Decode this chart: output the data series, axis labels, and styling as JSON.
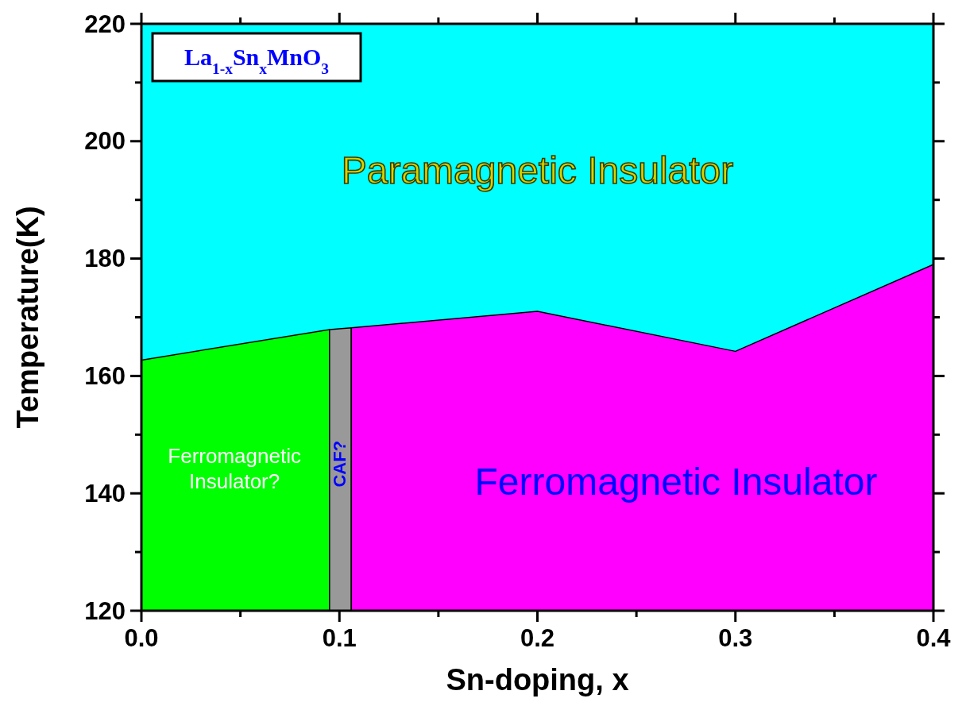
{
  "chart_data": {
    "type": "area",
    "title": "La$_{1-x}$Sn$_{x}$MnO$_{3}$",
    "xlabel": "Sn-doping, x",
    "ylabel": "Temperature(K)",
    "series": [
      {
        "color": "#00ff00",
        "x": [
          0,
          0.095
        ],
        "values": [
          162.7,
          167.9
        ]
      },
      {
        "color": "#999999",
        "x": [
          0.095,
          0.106
        ],
        "values": [
          167.9,
          168.2
        ]
      },
      {
        "color": "#ff00ff",
        "x": [
          0.106,
          0.2,
          0.3,
          0.4
        ],
        "values": [
          168.2,
          171,
          164.2,
          179
        ]
      }
    ],
    "annotations": [
      "Paramagnetic Insulator",
      "Ferromagnetic Insulator?",
      "CAF?",
      "Ferromagnetic Insulator"
    ],
    "xlim": [
      0,
      0.4
    ],
    "ylim": [
      120,
      220
    ],
    "xticks": [
      {
        "value": 0,
        "label": "0.0"
      },
      {
        "value": 0.05,
        "label": null
      },
      0.1,
      {
        "value": 0.15,
        "label": null
      },
      0.2,
      {
        "value": 0.25,
        "label": null
      },
      0.3,
      {
        "value": 0.35,
        "label": null
      },
      0.4
    ],
    "yticks": [
      120,
      {
        "value": 130,
        "label": null
      },
      140,
      {
        "value": 150,
        "label": null
      },
      160,
      {
        "value": 170,
        "label": null
      },
      180,
      {
        "value": 190,
        "label": null
      },
      200,
      {
        "value": 210,
        "label": null
      },
      220
    ],
    "grid": false
  }
}
